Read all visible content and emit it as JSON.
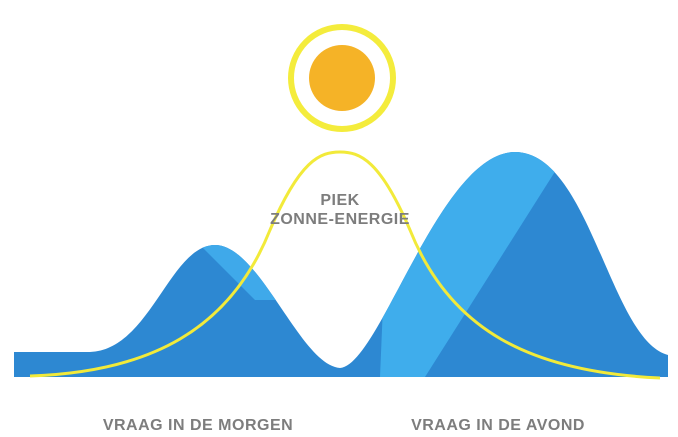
{
  "peak_label": [
    "PIEK",
    "ZONNE-ENERGIE"
  ],
  "demand_labels": [
    "VRAAG IN DE MORGEN",
    "VRAAG IN DE AVOND"
  ]
}
